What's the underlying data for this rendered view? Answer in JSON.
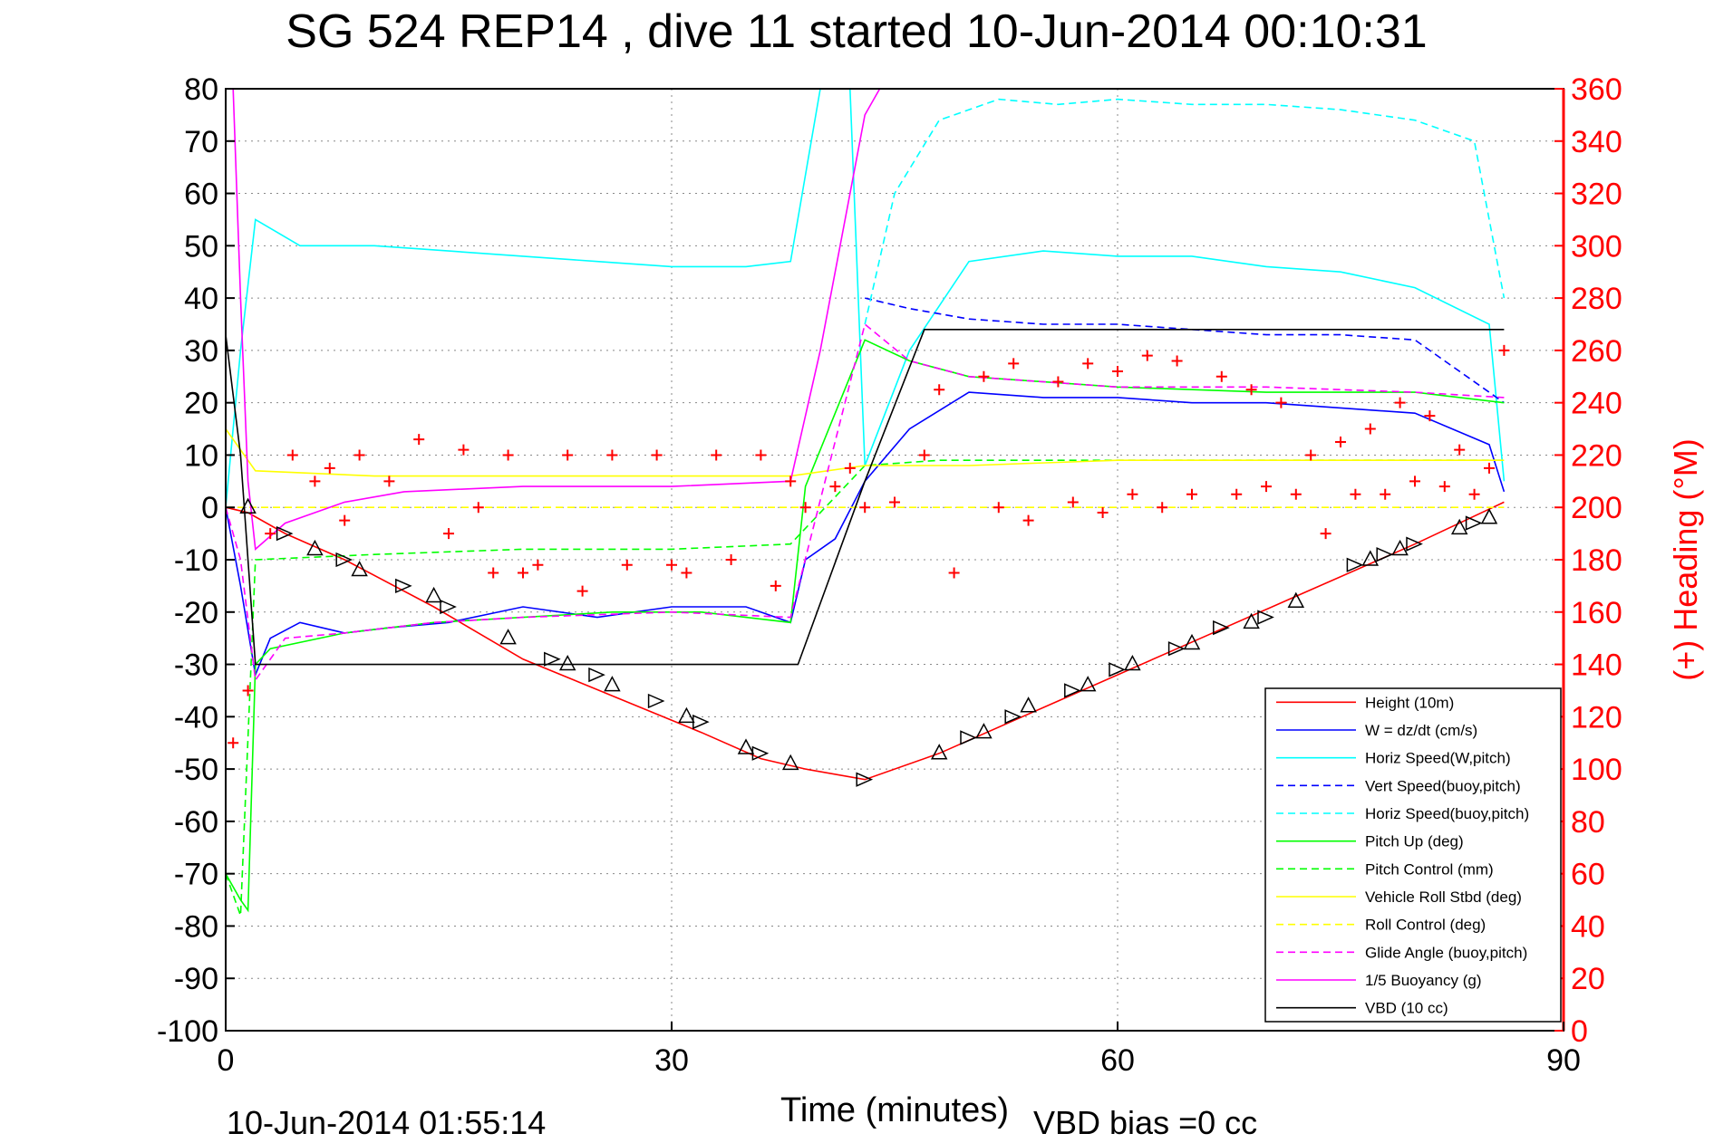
{
  "chart_data": {
    "type": "line",
    "title": "SG 524   REP14  , dive 11 started 10-Jun-2014 00:10:31",
    "xlabel": "Time (minutes)",
    "ylabel_right": "(+) Heading (°M)",
    "footer_left": "10-Jun-2014 01:55:14",
    "footer_right": "VBD bias =0 cc",
    "xlim": [
      0,
      90
    ],
    "ylim_left": [
      -100,
      80
    ],
    "ylim_right": [
      0,
      360
    ],
    "x_ticks": [
      "0",
      "30",
      "60",
      "90"
    ],
    "y_ticks_left": [
      "80",
      "70",
      "60",
      "50",
      "40",
      "30",
      "20",
      "10",
      "0",
      "-10",
      "-20",
      "-30",
      "-40",
      "-50",
      "-60",
      "-70",
      "-80",
      "-90",
      "-100"
    ],
    "y_ticks_right": [
      "360",
      "340",
      "320",
      "300",
      "280",
      "260",
      "240",
      "220",
      "200",
      "180",
      "160",
      "140",
      "120",
      "100",
      "80",
      "60",
      "40",
      "20",
      "0"
    ],
    "grid": true,
    "legend_position": "bottom-right",
    "legend": [
      {
        "label": "Height (10m)",
        "color": "#ff0000",
        "dash": "solid"
      },
      {
        "label": "W = dz/dt (cm/s)",
        "color": "#0000ff",
        "dash": "solid"
      },
      {
        "label": "Horiz Speed(W,pitch)",
        "color": "#00ffff",
        "dash": "solid"
      },
      {
        "label": "Vert Speed(buoy,pitch)",
        "color": "#0000ff",
        "dash": "dashed"
      },
      {
        "label": "Horiz Speed(buoy,pitch)",
        "color": "#00ffff",
        "dash": "dashed"
      },
      {
        "label": "Pitch Up (deg)",
        "color": "#00ff00",
        "dash": "solid"
      },
      {
        "label": "Pitch Control (mm)",
        "color": "#00ff00",
        "dash": "dashed"
      },
      {
        "label": "Vehicle Roll Stbd (deg)",
        "color": "#ffff00",
        "dash": "solid"
      },
      {
        "label": "Roll Control (deg)",
        "color": "#ffff00",
        "dash": "dashed"
      },
      {
        "label": "Glide Angle (buoy,pitch)",
        "color": "#ff00ff",
        "dash": "dashed"
      },
      {
        "label": "1/5 Buoyancy (g)",
        "color": "#ff00ff",
        "dash": "solid"
      },
      {
        "label": "VBD (10 cc)",
        "color": "#000000",
        "dash": "solid"
      }
    ],
    "series": [
      {
        "name": "Height (10m)",
        "x": [
          0,
          1.5,
          4,
          8,
          14,
          20,
          26,
          32,
          36,
          39,
          43,
          48,
          56,
          64,
          72,
          80,
          86
        ],
        "y": [
          0,
          -1,
          -5,
          -10,
          -19,
          -29,
          -36,
          -43,
          -48,
          -50,
          -52,
          -47,
          -37,
          -27,
          -17,
          -7,
          1
        ]
      },
      {
        "name": "W = dz/dt (cm/s)",
        "x": [
          0,
          1,
          2,
          3,
          5,
          8,
          11,
          15,
          20,
          25,
          30,
          35,
          38,
          39,
          41,
          43,
          46,
          50,
          55,
          60,
          65,
          70,
          75,
          80,
          85,
          86
        ],
        "y": [
          0,
          -15,
          -32,
          -25,
          -22,
          -24,
          -23,
          -22,
          -19,
          -21,
          -19,
          -19,
          -22,
          -10,
          -6,
          5,
          15,
          22,
          21,
          21,
          20,
          20,
          19,
          18,
          12,
          3
        ]
      },
      {
        "name": "Horiz Speed(W,pitch)",
        "x": [
          0,
          1,
          2,
          5,
          10,
          15,
          20,
          25,
          30,
          35,
          38,
          40,
          42,
          43,
          46,
          50,
          55,
          60,
          65,
          70,
          75,
          80,
          85,
          86
        ],
        "y": [
          0,
          30,
          55,
          50,
          50,
          49,
          48,
          47,
          46,
          46,
          47,
          80,
          80,
          8,
          30,
          47,
          49,
          48,
          48,
          46,
          45,
          42,
          35,
          5
        ]
      },
      {
        "name": "Vert Speed(buoy,pitch)",
        "x": [
          43,
          46,
          50,
          55,
          60,
          65,
          70,
          75,
          80,
          85,
          86
        ],
        "y": [
          40,
          38,
          36,
          35,
          35,
          34,
          33,
          33,
          32,
          22,
          20
        ]
      },
      {
        "name": "Horiz Speed(buoy,pitch)",
        "x": [
          43,
          45,
          48,
          52,
          56,
          60,
          65,
          70,
          75,
          80,
          84,
          86
        ],
        "y": [
          35,
          60,
          74,
          78,
          77,
          78,
          77,
          77,
          76,
          74,
          70,
          40
        ]
      },
      {
        "name": "Pitch Up (deg)",
        "x": [
          0,
          1,
          1.5,
          2,
          3,
          8,
          14,
          20,
          26,
          32,
          38,
          39,
          43,
          46,
          50,
          60,
          70,
          80,
          86
        ],
        "y": [
          -70,
          -75,
          -77,
          -30,
          -27,
          -24,
          -22,
          -21,
          -20,
          -20,
          -22,
          4,
          32,
          28,
          25,
          23,
          22,
          22,
          20
        ]
      },
      {
        "name": "Pitch Control (mm)",
        "x": [
          0,
          1,
          2,
          10,
          20,
          30,
          38,
          43,
          48,
          60,
          70,
          80,
          86
        ],
        "y": [
          -70,
          -78,
          -10,
          -9,
          -8,
          -8,
          -7,
          8,
          9,
          9,
          9,
          9,
          9
        ]
      },
      {
        "name": "Vehicle Roll Stbd (deg)",
        "x": [
          0,
          2,
          10,
          20,
          30,
          38,
          43,
          50,
          60,
          70,
          80,
          86
        ],
        "y": [
          15,
          7,
          6,
          6,
          6,
          6,
          8,
          8,
          9,
          9,
          9,
          9
        ]
      },
      {
        "name": "Roll Control (deg)",
        "x": [
          0,
          2,
          10,
          20,
          30,
          38,
          43,
          50,
          60,
          70,
          80,
          86
        ],
        "y": [
          0,
          0,
          0,
          0,
          0,
          0,
          0,
          0,
          0,
          0,
          0,
          0
        ]
      },
      {
        "name": "Glide Angle (buoy,pitch)",
        "x": [
          0,
          1,
          2,
          4,
          8,
          14,
          20,
          30,
          38,
          43,
          46,
          50,
          60,
          70,
          80,
          86
        ],
        "y": [
          0,
          -10,
          -33,
          -25,
          -24,
          -22,
          -21,
          -20,
          -21,
          35,
          28,
          25,
          23,
          23,
          22,
          21
        ]
      },
      {
        "name": "1/5 Buoyancy (g)",
        "x": [
          0.5,
          1,
          1.5,
          2,
          4,
          8,
          12,
          20,
          30,
          38,
          40,
          42,
          43,
          44
        ],
        "y": [
          80,
          40,
          5,
          -8,
          -3,
          1,
          3,
          4,
          4,
          5,
          30,
          60,
          75,
          80
        ]
      },
      {
        "name": "VBD (10 cc)",
        "x": [
          0,
          1,
          2,
          5,
          10,
          20,
          30,
          38.5,
          43,
          47,
          50,
          60,
          70,
          80,
          86
        ],
        "y": [
          33,
          10,
          -30,
          -30,
          -30,
          -30,
          -30,
          -30,
          5,
          34,
          34,
          34,
          34,
          34,
          34
        ]
      },
      {
        "name": "Heading",
        "axis": "right",
        "x": [
          0.5,
          1.5,
          3,
          4.5,
          6,
          7,
          8,
          9,
          11,
          13,
          15,
          16,
          17,
          18,
          19,
          20,
          21,
          23,
          24,
          26,
          27,
          29,
          30,
          31,
          33,
          34,
          36,
          37,
          38,
          39,
          41,
          42,
          43,
          45,
          47,
          48,
          49,
          51,
          52,
          53,
          54,
          56,
          57,
          58,
          59,
          60,
          61,
          62,
          63,
          64,
          65,
          67,
          68,
          69,
          70,
          71,
          72,
          73,
          74,
          75,
          76,
          77,
          78,
          79,
          80,
          81,
          82,
          83,
          84,
          85,
          86
        ],
        "y": [
          110,
          130,
          190,
          220,
          210,
          215,
          195,
          220,
          210,
          226,
          190,
          222,
          200,
          175,
          220,
          175,
          178,
          220,
          168,
          220,
          178,
          220,
          178,
          175,
          220,
          180,
          220,
          170,
          210,
          200,
          208,
          215,
          200,
          202,
          220,
          245,
          175,
          250,
          200,
          255,
          195,
          248,
          202,
          255,
          198,
          252,
          205,
          258,
          200,
          256,
          205,
          250,
          205,
          245,
          208,
          240,
          205,
          220,
          190,
          225,
          205,
          230,
          205,
          240,
          210,
          235,
          208,
          222,
          205,
          215,
          260
        ]
      }
    ],
    "markers": {
      "name": "Height (10m)",
      "x": [
        1.5,
        4,
        6,
        8,
        9,
        12,
        14,
        15,
        19,
        22,
        23,
        25,
        26,
        29,
        31,
        32,
        35,
        36,
        38,
        43,
        48,
        50,
        51,
        53,
        54,
        57,
        58,
        60,
        61,
        64,
        65,
        67,
        69,
        70,
        72,
        76,
        77,
        78,
        79,
        80,
        83,
        84,
        85
      ],
      "y": [
        0,
        -5,
        -8,
        -10,
        -12,
        -15,
        -17,
        -19,
        -25,
        -29,
        -30,
        -32,
        -34,
        -37,
        -40,
        -41,
        -46,
        -47,
        -49,
        -52,
        -47,
        -44,
        -43,
        -40,
        -38,
        -35,
        -34,
        -31,
        -30,
        -27,
        -26,
        -23,
        -22,
        -21,
        -18,
        -11,
        -10,
        -9,
        -8,
        -7,
        -4,
        -3,
        -2
      ]
    }
  }
}
